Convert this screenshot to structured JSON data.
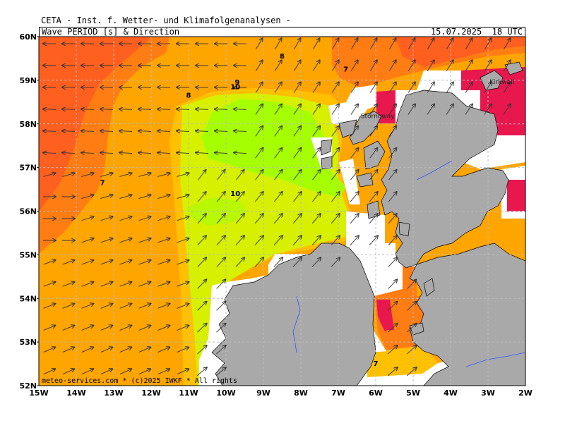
{
  "header": {
    "title": "CETA - Inst. f. Wetter- und Klimafolgenanalysen -",
    "subtitle": "Wave_PERIOD_[s]_&_Direction",
    "datetime": "15.07.2025  18 UTC"
  },
  "footer": {
    "credit": "meteo-services.com * (c)2025 IWKF * All rights"
  },
  "axes": {
    "lat_labels": [
      "60N",
      "59N",
      "58N",
      "57N",
      "56N",
      "55N",
      "54N",
      "53N",
      "52N"
    ],
    "lon_labels": [
      "15W",
      "14W",
      "13W",
      "12W",
      "11W",
      "10W",
      "9W",
      "8W",
      "7W",
      "6W",
      "5W",
      "4W",
      "3W",
      "2W"
    ],
    "lat_range": [
      52,
      60
    ],
    "lon_range": [
      -15,
      -2
    ]
  },
  "places": [
    {
      "name": "Stornoway",
      "lon": -6.4,
      "lat": 58.2
    },
    {
      "name": "Kirkwall",
      "lon": -2.96,
      "lat": 58.98
    }
  ],
  "contour_labels": [
    {
      "text": "8",
      "lon": -8.5,
      "lat": 59.5
    },
    {
      "text": "7",
      "lon": -6.8,
      "lat": 59.2
    },
    {
      "text": "9",
      "lon": -9.7,
      "lat": 58.9
    },
    {
      "text": "10",
      "lon": -9.75,
      "lat": 58.8
    },
    {
      "text": "8",
      "lon": -11.0,
      "lat": 58.6
    },
    {
      "text": "7",
      "lon": -13.3,
      "lat": 56.6
    },
    {
      "text": "10",
      "lon": -9.75,
      "lat": 56.35
    },
    {
      "text": "7",
      "lon": -6.0,
      "lat": 52.45
    }
  ],
  "colors": {
    "period_6": "#e8174e",
    "period_7": "#ff5f1f",
    "period_7_5": "#ff7d12",
    "period_8": "#ffa500",
    "period_9": "#ffc000",
    "period_9_5": "#d6f000",
    "period_10": "#a6ff00",
    "land": "#a9a9a9",
    "water_mask": "#ffffff",
    "grid": "#bbbbbb",
    "arrow": "#333333",
    "river": "#3355ff"
  },
  "arrow_direction_note_free": true
}
